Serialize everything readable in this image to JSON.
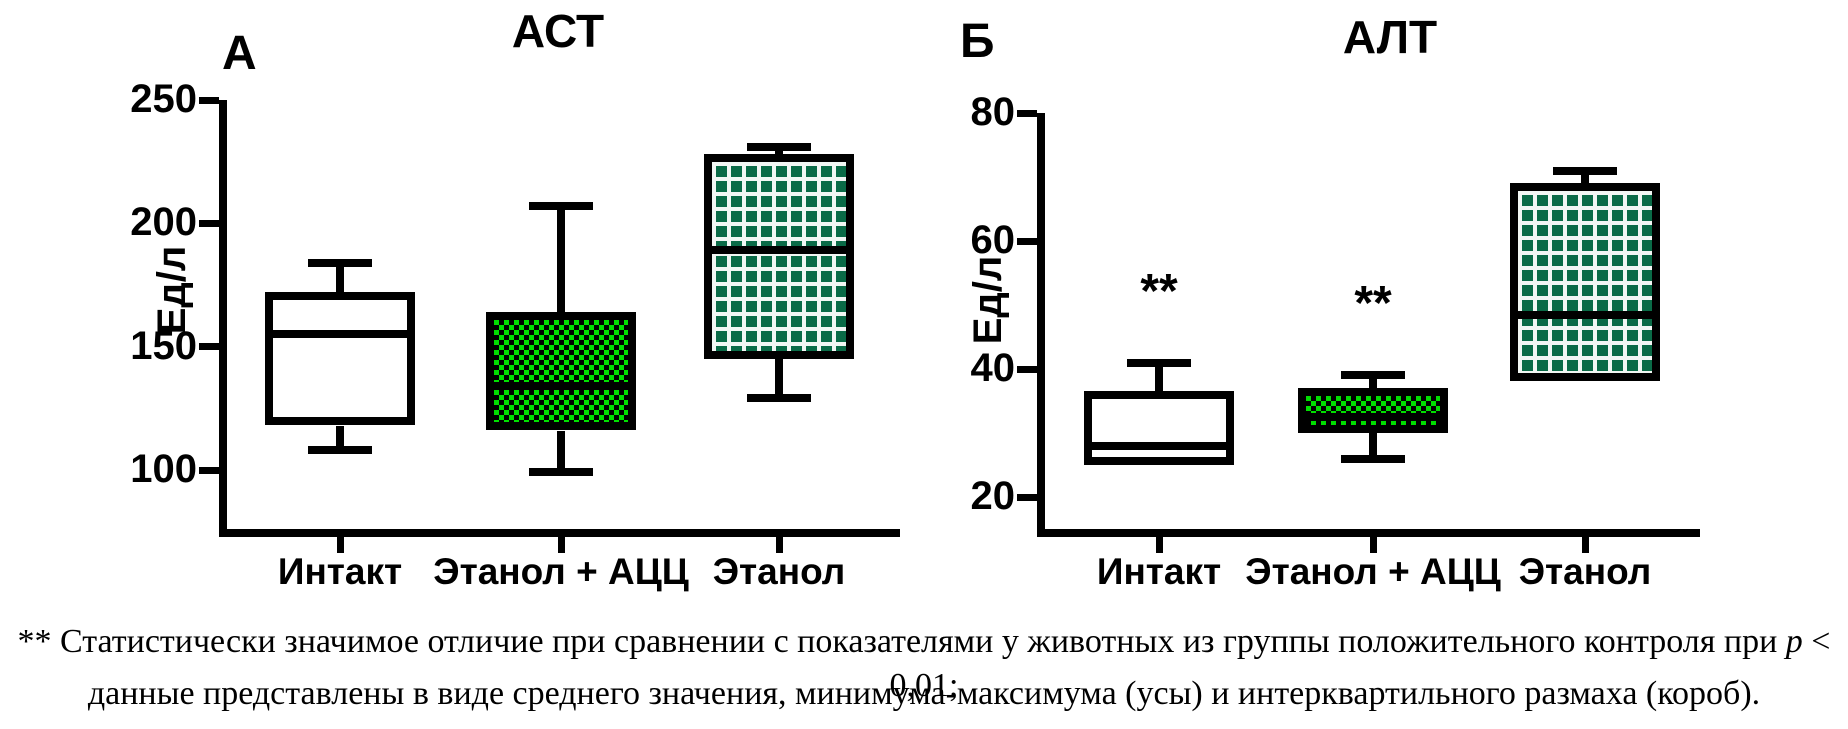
{
  "figure": {
    "panels": [
      {
        "id": "ast",
        "letter": "А",
        "title": "АСТ",
        "ylabel": "Ед/л"
      },
      {
        "id": "alt",
        "letter": "Б",
        "title": "АЛТ",
        "ylabel": "Ед/л"
      }
    ],
    "caption": {
      "line1_prefix": "** Статистически значимое отличие при сравнении с показателями у животных из группы положительного контроля при ",
      "line1_italic": "p",
      "line1_suffix": " < 0,01;",
      "line2": "данные представлены в виде среднего значения, минимума-максимума (усы) и интерквартильного размаха (короб)."
    }
  },
  "colors": {
    "checker_green": "#00DF00",
    "grid_green": "#0A6B47",
    "box_outline": "#000000",
    "background": "#FFFFFF"
  },
  "chart_data": [
    {
      "type": "boxplot",
      "id": "ast",
      "title": "АСТ",
      "ylabel": "Ед/л",
      "ylim": [
        75,
        250
      ],
      "yticks": [
        250,
        200,
        150,
        100
      ],
      "grid": false,
      "legend": "none",
      "categories": [
        "Интакт",
        "Этанол + АЦЦ",
        "Этанол"
      ],
      "series": [
        {
          "category": "Интакт",
          "pattern": "white",
          "min": 108,
          "q1": 118,
          "median": 155,
          "q3": 172,
          "max": 184,
          "annotation": ""
        },
        {
          "category": "Этанол + АЦЦ",
          "pattern": "green-checker",
          "min": 99,
          "q1": 116,
          "median": 134,
          "q3": 164,
          "max": 207,
          "annotation": ""
        },
        {
          "category": "Этанол",
          "pattern": "green-grid",
          "min": 129,
          "q1": 145,
          "median": 189,
          "q3": 228,
          "max": 231,
          "annotation": ""
        }
      ]
    },
    {
      "type": "boxplot",
      "id": "alt",
      "title": "АЛТ",
      "ylabel": "Ед/л",
      "ylim": [
        14,
        80
      ],
      "yticks": [
        80,
        60,
        40,
        20
      ],
      "grid": false,
      "legend": "none",
      "categories": [
        "Интакт",
        "Этанол + АЦЦ",
        "Этанол"
      ],
      "series": [
        {
          "category": "Интакт",
          "pattern": "white",
          "min": 25,
          "q1": 25,
          "median": 28,
          "q3": 36.5,
          "max": 41,
          "annotation": "**"
        },
        {
          "category": "Этанол + АЦЦ",
          "pattern": "green-checker",
          "min": 26,
          "q1": 30,
          "median": 32.5,
          "q3": 37,
          "max": 39,
          "annotation": "**"
        },
        {
          "category": "Этанол",
          "pattern": "green-grid",
          "min": 38,
          "q1": 38,
          "median": 48.5,
          "q3": 69,
          "max": 71,
          "annotation": ""
        }
      ]
    }
  ]
}
